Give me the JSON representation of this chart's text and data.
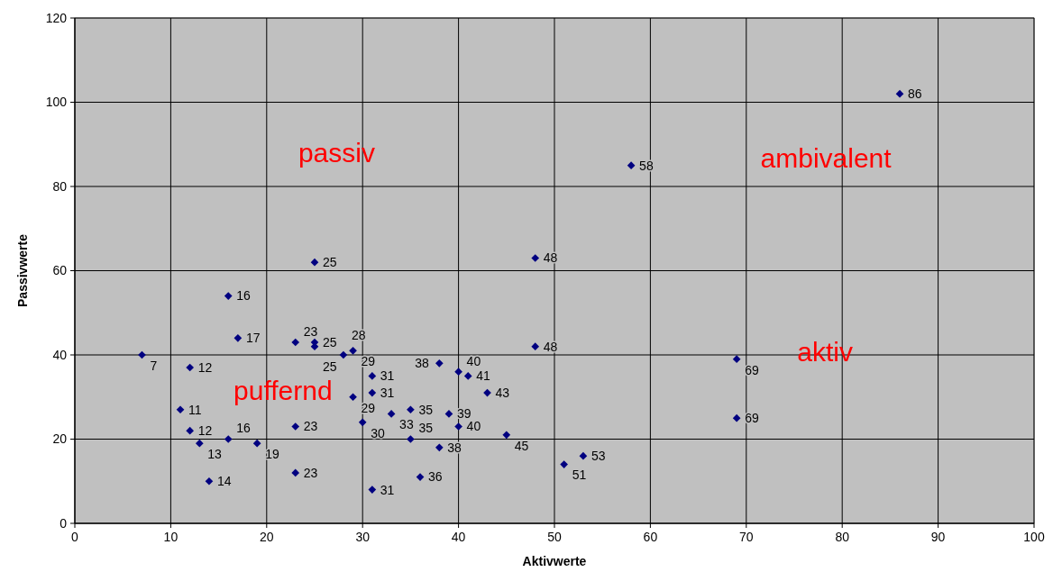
{
  "chart_data": {
    "type": "scatter",
    "xlabel": "Aktivwerte",
    "ylabel": "Passivwerte",
    "xlim": [
      0,
      100
    ],
    "ylim": [
      0,
      120
    ],
    "xticks": [
      0,
      10,
      20,
      30,
      40,
      50,
      60,
      70,
      80,
      90,
      100
    ],
    "yticks": [
      0,
      20,
      40,
      60,
      80,
      100,
      120
    ],
    "grid": true,
    "marker": "diamond",
    "series": [
      {
        "color": "#000080",
        "x": [
          7,
          12,
          11,
          12,
          13,
          16,
          19,
          14,
          16,
          17,
          23,
          25,
          25,
          28,
          29,
          25,
          31,
          31,
          29,
          23,
          23,
          30,
          33,
          35,
          31,
          35,
          36,
          38,
          40,
          41,
          43,
          39,
          40,
          38,
          45,
          51,
          53,
          48,
          48,
          58,
          69,
          69,
          86
        ],
        "values": [
          40,
          37,
          27,
          22,
          19,
          20,
          19,
          10,
          54,
          44,
          43,
          43,
          42,
          40,
          41,
          62,
          35,
          31,
          30,
          23,
          12,
          24,
          26,
          27,
          8,
          20,
          11,
          38,
          36,
          35,
          31,
          26,
          23,
          18,
          21,
          14,
          16,
          63,
          42,
          85,
          39,
          25,
          102
        ]
      }
    ],
    "annotations": [
      "passiv",
      "ambivalent",
      "aktiv",
      "puffernd",
      {
        "text": "7",
        "x": 7,
        "y": 40
      },
      {
        "text": "12",
        "x": 12,
        "y": 37
      },
      {
        "text": "11",
        "x": 11,
        "y": 27
      },
      {
        "text": "12",
        "x": 12,
        "y": 22
      },
      {
        "text": "13",
        "x": 13,
        "y": 19
      },
      {
        "text": "16",
        "x": 16,
        "y": 20
      },
      {
        "text": "19",
        "x": 19,
        "y": 19
      },
      {
        "text": "14",
        "x": 14,
        "y": 10
      },
      {
        "text": "16",
        "x": 16,
        "y": 54
      },
      {
        "text": "17",
        "x": 17,
        "y": 44
      },
      {
        "text": "23",
        "x": 23,
        "y": 43
      },
      {
        "text": "25",
        "x": 25,
        "y": 43
      },
      {
        "text": "25",
        "x": 25,
        "y": 42
      },
      {
        "text": "28",
        "x": 28,
        "y": 40
      },
      {
        "text": "29",
        "x": 29,
        "y": 41
      },
      {
        "text": "25",
        "x": 25,
        "y": 62
      },
      {
        "text": "31",
        "x": 31,
        "y": 35
      },
      {
        "text": "31",
        "x": 31,
        "y": 31
      },
      {
        "text": "29",
        "x": 29,
        "y": 30
      },
      {
        "text": "23",
        "x": 23,
        "y": 23
      },
      {
        "text": "23",
        "x": 23,
        "y": 12
      },
      {
        "text": "30",
        "x": 30,
        "y": 24
      },
      {
        "text": "33",
        "x": 33,
        "y": 26
      },
      {
        "text": "35",
        "x": 35,
        "y": 27
      },
      {
        "text": "31",
        "x": 31,
        "y": 8
      },
      {
        "text": "35",
        "x": 35,
        "y": 20
      },
      {
        "text": "36",
        "x": 36,
        "y": 11
      },
      {
        "text": "38",
        "x": 38,
        "y": 38
      },
      {
        "text": "40",
        "x": 40,
        "y": 36
      },
      {
        "text": "41",
        "x": 41,
        "y": 35
      },
      {
        "text": "43",
        "x": 43,
        "y": 31
      },
      {
        "text": "39",
        "x": 39,
        "y": 26
      },
      {
        "text": "40",
        "x": 40,
        "y": 23
      },
      {
        "text": "38",
        "x": 38,
        "y": 18
      },
      {
        "text": "45",
        "x": 45,
        "y": 21
      },
      {
        "text": "51",
        "x": 51,
        "y": 14
      },
      {
        "text": "53",
        "x": 53,
        "y": 16
      },
      {
        "text": "48",
        "x": 48,
        "y": 63
      },
      {
        "text": "48",
        "x": 48,
        "y": 42
      },
      {
        "text": "58",
        "x": 58,
        "y": 85
      },
      {
        "text": "69",
        "x": 69,
        "y": 39
      },
      {
        "text": "69",
        "x": 69,
        "y": 25
      },
      {
        "text": "86",
        "x": 86,
        "y": 102
      }
    ]
  }
}
